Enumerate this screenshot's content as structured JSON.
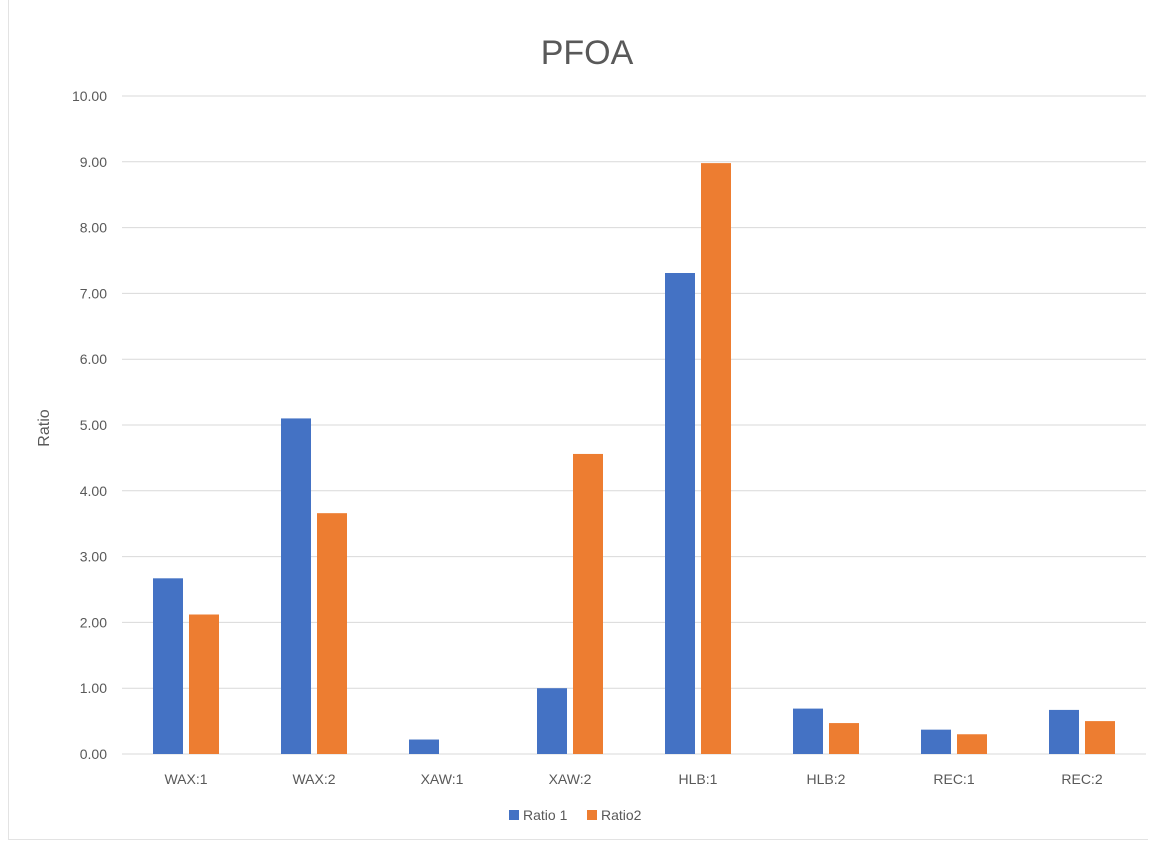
{
  "chart_data": {
    "type": "bar",
    "title": "PFOA",
    "xlabel": "",
    "ylabel": "Ratio",
    "ylim": [
      0,
      10
    ],
    "yticks": [
      "0.00",
      "1.00",
      "2.00",
      "3.00",
      "4.00",
      "5.00",
      "6.00",
      "7.00",
      "8.00",
      "9.00",
      "10.00"
    ],
    "categories": [
      "WAX:1",
      "WAX:2",
      "XAW:1",
      "XAW:2",
      "HLB:1",
      "HLB:2",
      "REC:1",
      "REC:2"
    ],
    "series": [
      {
        "name": "Ratio 1",
        "color": "#4472c4",
        "values": [
          2.67,
          5.1,
          0.22,
          1.0,
          7.31,
          0.69,
          0.37,
          0.67
        ]
      },
      {
        "name": "Ratio2",
        "color": "#ed7d31",
        "values": [
          2.12,
          3.66,
          0,
          4.56,
          8.98,
          0.47,
          0.3,
          0.5
        ]
      }
    ],
    "grid": true,
    "legend": "bottom"
  }
}
